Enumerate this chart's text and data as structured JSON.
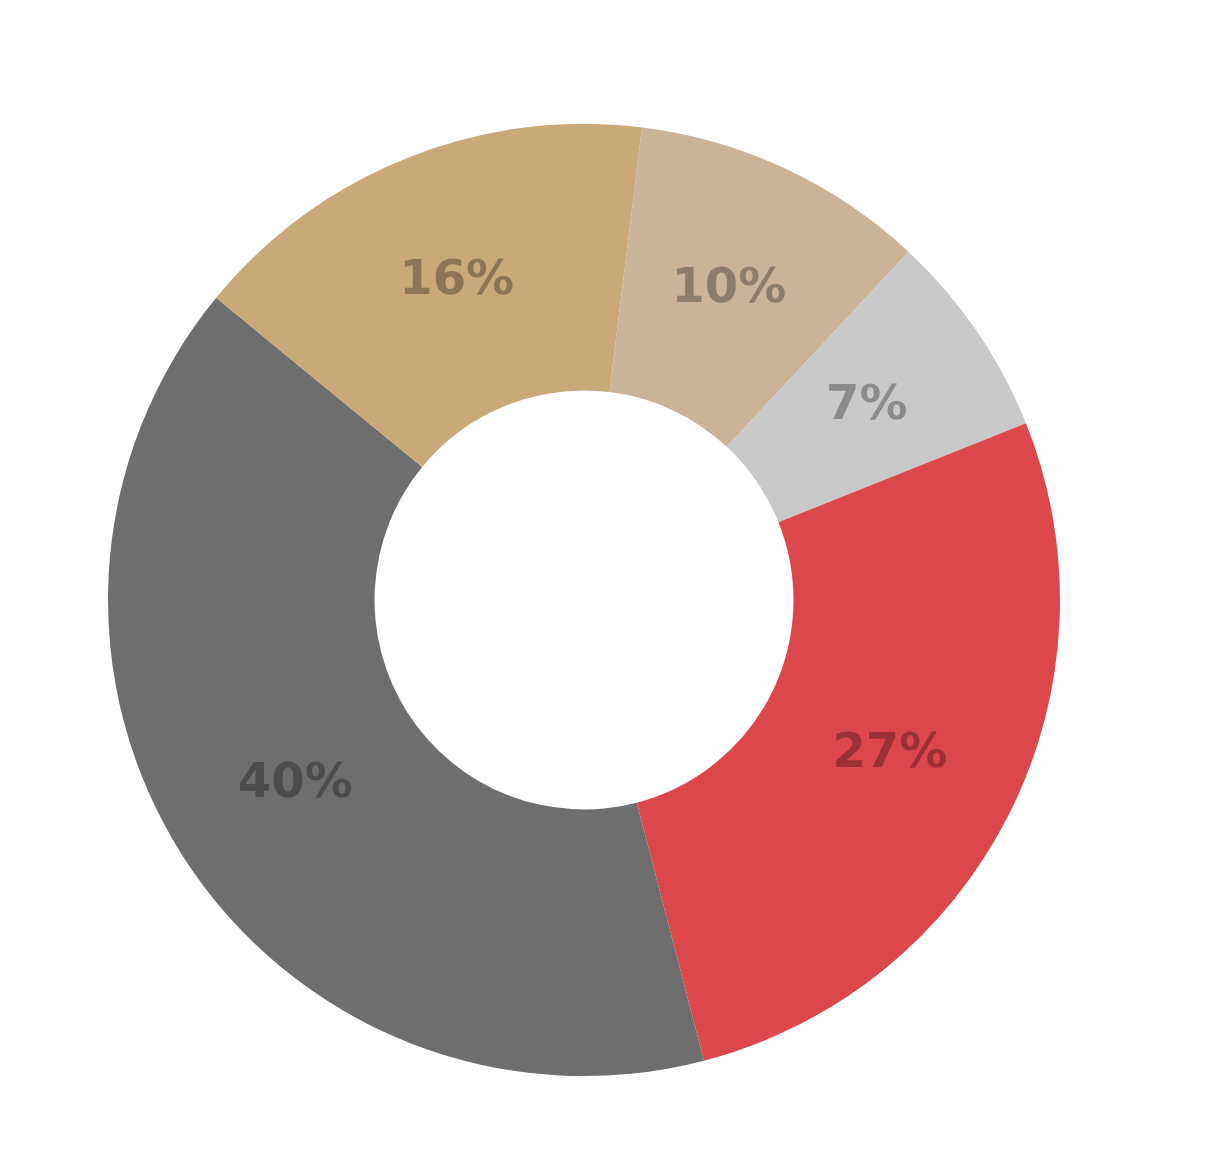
{
  "chart_data": {
    "type": "donut",
    "categories": [
      null,
      null,
      null,
      null,
      null
    ],
    "values": [
      10,
      7,
      27,
      40,
      16
    ],
    "colors": [
      "#c9b49a",
      "#c8c8c8",
      "#dc474c",
      "#6e6e6e",
      "#c9a87a"
    ],
    "value_labels": [
      "10%",
      "7%",
      "27%",
      "40%",
      "16%"
    ],
    "legend": false
  }
}
